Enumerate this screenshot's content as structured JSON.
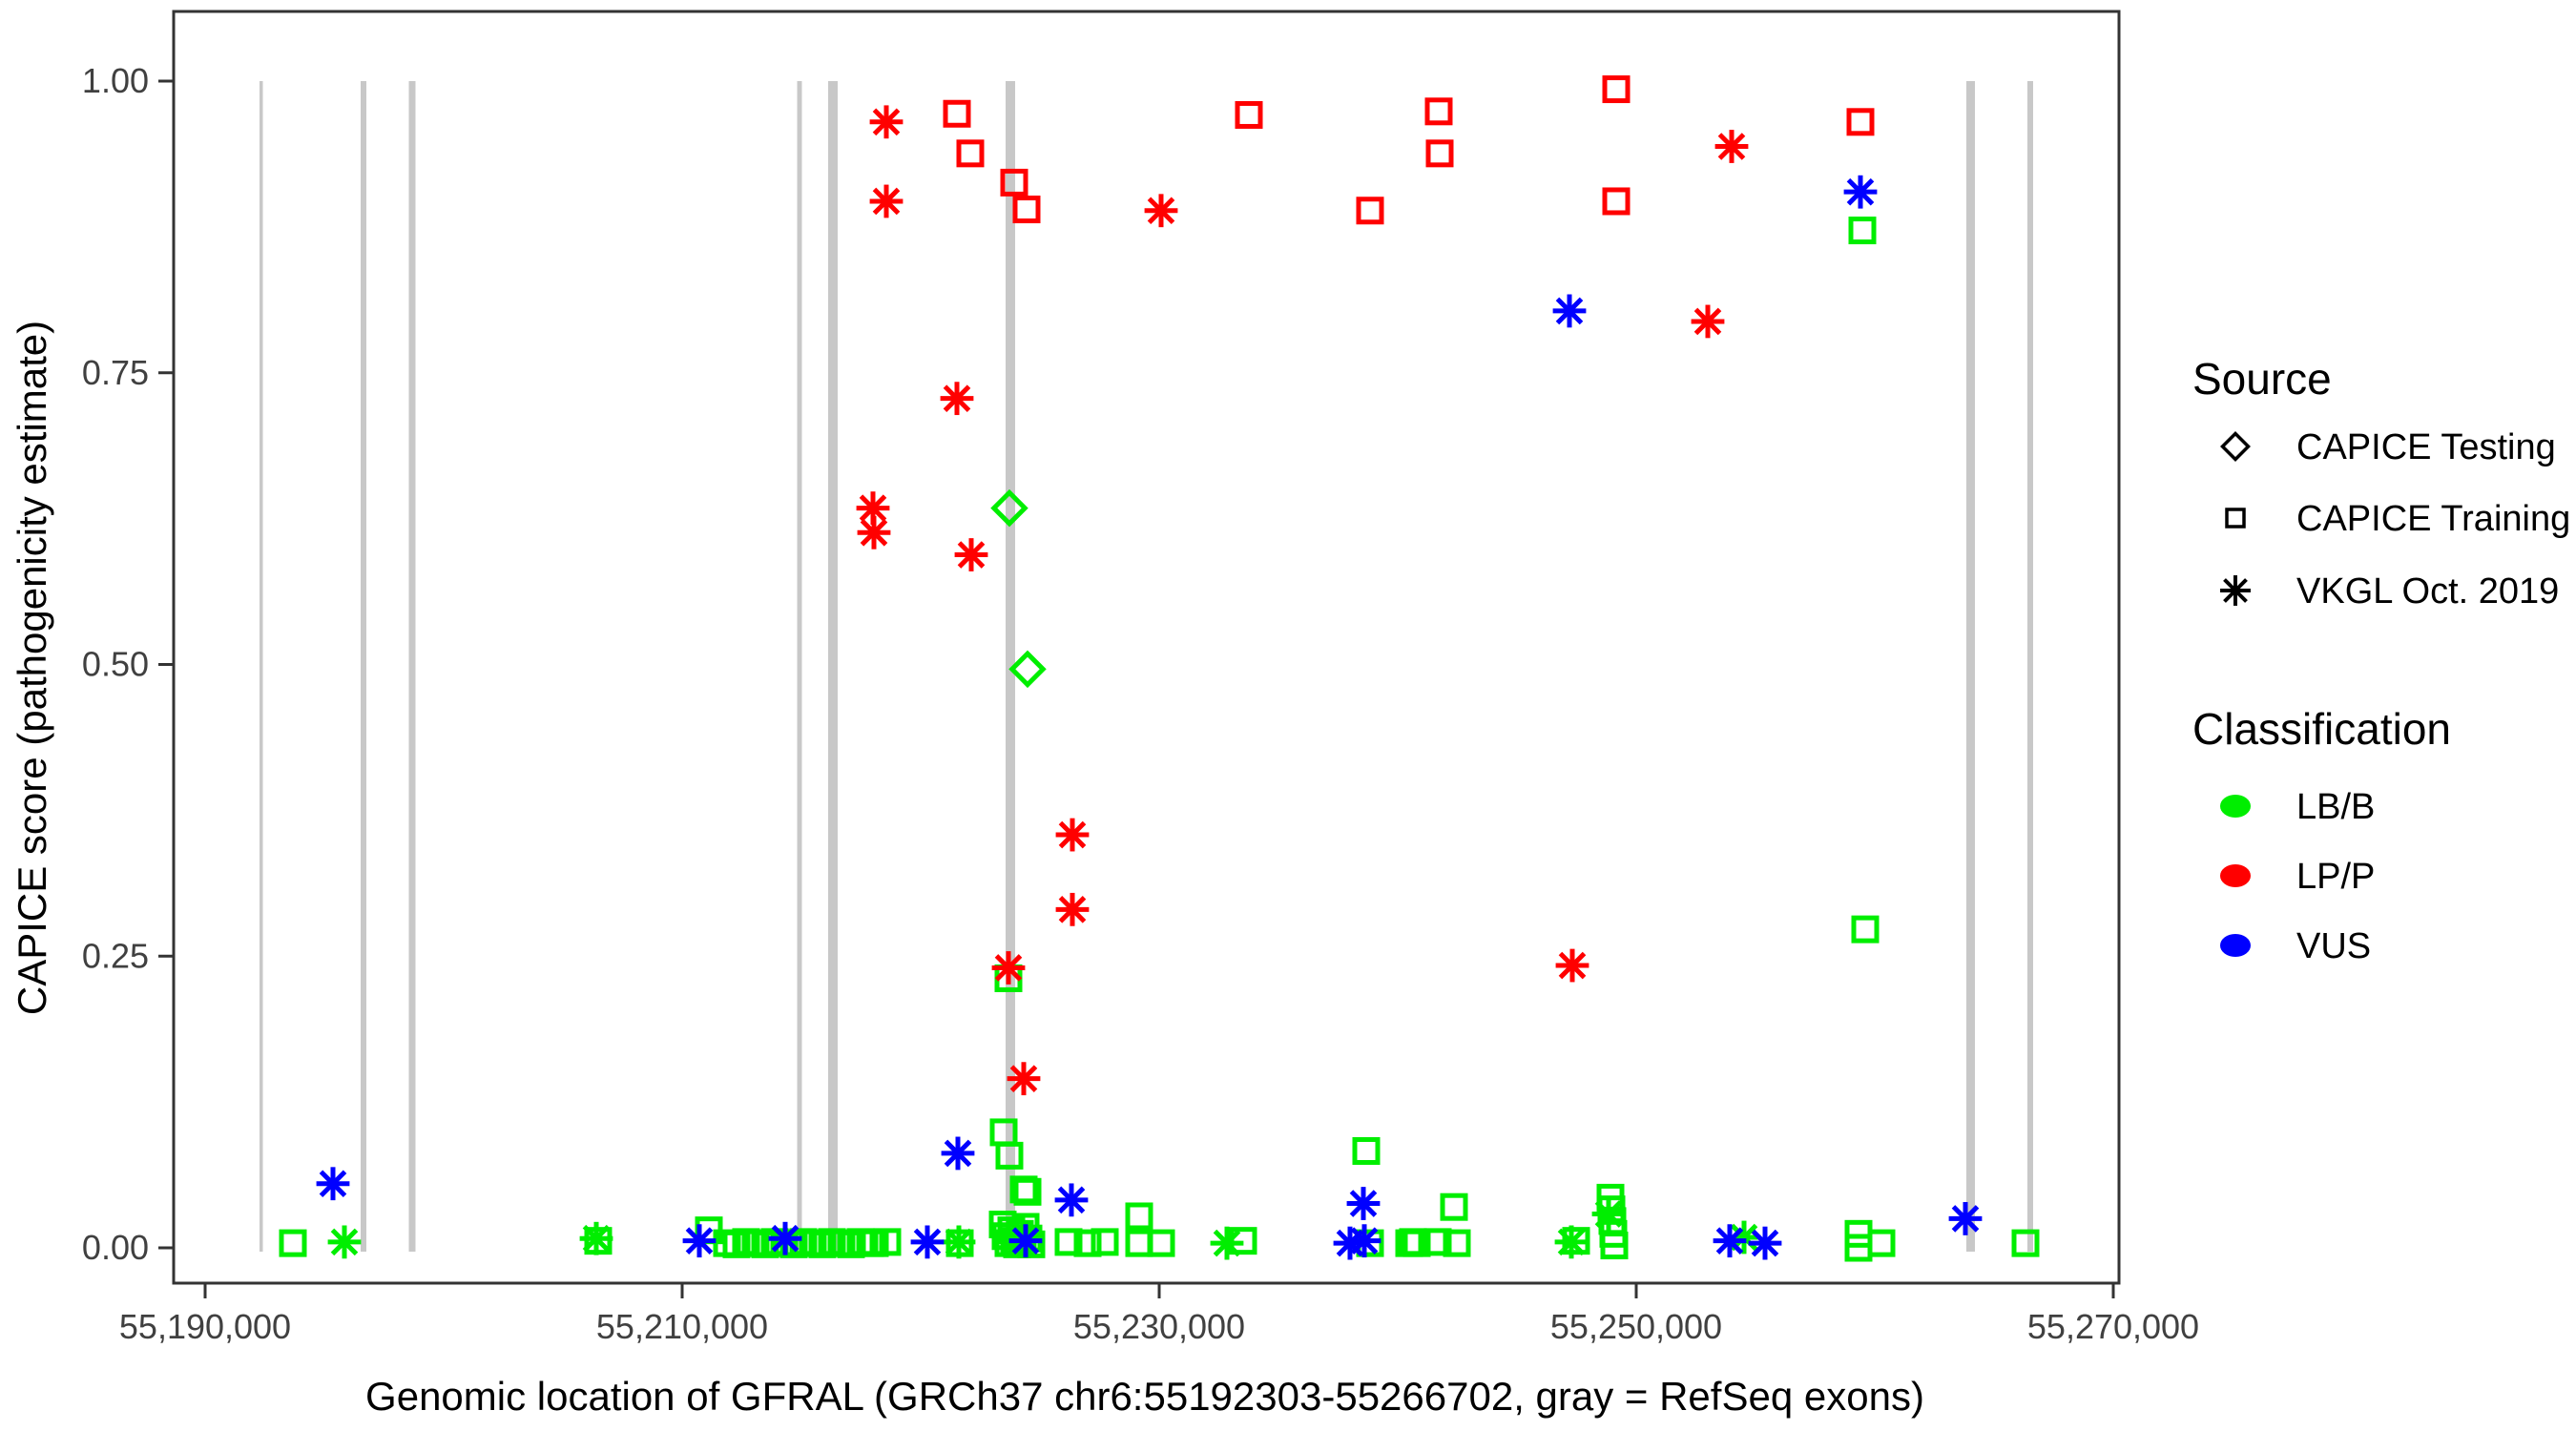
{
  "chart_data": {
    "type": "scatter",
    "title": "",
    "xlabel": "Genomic location of GFRAL (GRCh37 chr6:55192303-55266702, gray = RefSeq exons)",
    "ylabel": "CAPICE score (pathogenicity estimate)",
    "x_ticks": [
      {
        "v": 55190000,
        "label": "55,190,000"
      },
      {
        "v": 55210000,
        "label": "55,210,000"
      },
      {
        "v": 55230000,
        "label": "55,230,000"
      },
      {
        "v": 55250000,
        "label": "55,250,000"
      },
      {
        "v": 55270000,
        "label": "55,270,000"
      }
    ],
    "y_ticks": [
      {
        "v": 0.0,
        "label": "0.00"
      },
      {
        "v": 0.25,
        "label": "0.25"
      },
      {
        "v": 0.5,
        "label": "0.50"
      },
      {
        "v": 0.75,
        "label": "0.75"
      },
      {
        "v": 1.0,
        "label": "1.00"
      }
    ],
    "xlim": [
      55188680,
      55270240
    ],
    "ylim": [
      0,
      1
    ],
    "grid": false,
    "legend_position": "right",
    "colors": {
      "LB/B": "#00ee00",
      "LP/P": "#ff0000",
      "VUS": "#0000ff",
      "exon": "#c8c8c8",
      "axis": "#333333"
    },
    "exons": [
      {
        "start": 55192280,
        "end": 55192400
      },
      {
        "start": 55196520,
        "end": 55196760
      },
      {
        "start": 55198540,
        "end": 55198820
      },
      {
        "start": 55214820,
        "end": 55215020
      },
      {
        "start": 55216120,
        "end": 55216520
      },
      {
        "start": 55223560,
        "end": 55223960
      },
      {
        "start": 55263840,
        "end": 55264200
      },
      {
        "start": 55266400,
        "end": 55266640
      }
    ],
    "points": [
      {
        "bp": 55218560,
        "score": 0.965,
        "source": "vkgl",
        "cls": "LP/P"
      },
      {
        "bp": 55218560,
        "score": 0.897,
        "source": "vkgl",
        "cls": "LP/P"
      },
      {
        "bp": 55218000,
        "score": 0.634,
        "source": "vkgl",
        "cls": "LP/P"
      },
      {
        "bp": 55218040,
        "score": 0.613,
        "source": "vkgl",
        "cls": "LP/P"
      },
      {
        "bp": 55221520,
        "score": 0.728,
        "source": "vkgl",
        "cls": "LP/P"
      },
      {
        "bp": 55222120,
        "score": 0.594,
        "source": "vkgl",
        "cls": "LP/P"
      },
      {
        "bp": 55223680,
        "score": 0.24,
        "source": "vkgl",
        "cls": "LP/P"
      },
      {
        "bp": 55224320,
        "score": 0.145,
        "source": "vkgl",
        "cls": "LP/P"
      },
      {
        "bp": 55226360,
        "score": 0.354,
        "source": "vkgl",
        "cls": "LP/P"
      },
      {
        "bp": 55226360,
        "score": 0.29,
        "source": "vkgl",
        "cls": "LP/P"
      },
      {
        "bp": 55230080,
        "score": 0.889,
        "source": "vkgl",
        "cls": "LP/P"
      },
      {
        "bp": 55247320,
        "score": 0.242,
        "source": "vkgl",
        "cls": "LP/P"
      },
      {
        "bp": 55253000,
        "score": 0.794,
        "source": "vkgl",
        "cls": "LP/P"
      },
      {
        "bp": 55254000,
        "score": 0.944,
        "source": "vkgl",
        "cls": "LP/P"
      },
      {
        "bp": 55221520,
        "score": 0.972,
        "source": "training",
        "cls": "LP/P"
      },
      {
        "bp": 55222080,
        "score": 0.938,
        "source": "training",
        "cls": "LP/P"
      },
      {
        "bp": 55223920,
        "score": 0.913,
        "source": "training",
        "cls": "LP/P"
      },
      {
        "bp": 55224440,
        "score": 0.89,
        "source": "training",
        "cls": "LP/P"
      },
      {
        "bp": 55233760,
        "score": 0.971,
        "source": "training",
        "cls": "LP/P"
      },
      {
        "bp": 55238840,
        "score": 0.889,
        "source": "training",
        "cls": "LP/P"
      },
      {
        "bp": 55241720,
        "score": 0.974,
        "source": "training",
        "cls": "LP/P"
      },
      {
        "bp": 55241760,
        "score": 0.938,
        "source": "training",
        "cls": "LP/P"
      },
      {
        "bp": 55249160,
        "score": 0.993,
        "source": "training",
        "cls": "LP/P"
      },
      {
        "bp": 55249160,
        "score": 0.897,
        "source": "training",
        "cls": "LP/P"
      },
      {
        "bp": 55259400,
        "score": 0.965,
        "source": "training",
        "cls": "LP/P"
      },
      {
        "bp": 55223720,
        "score": 0.634,
        "source": "testing",
        "cls": "LB/B"
      },
      {
        "bp": 55224480,
        "score": 0.496,
        "source": "testing",
        "cls": "LB/B"
      },
      {
        "bp": 55193680,
        "score": 0.004,
        "source": "training",
        "cls": "LB/B"
      },
      {
        "bp": 55206480,
        "score": 0.006,
        "source": "training",
        "cls": "LB/B"
      },
      {
        "bp": 55211120,
        "score": 0.015,
        "source": "training",
        "cls": "LB/B"
      },
      {
        "bp": 55211880,
        "score": 0.004,
        "source": "training",
        "cls": "LB/B"
      },
      {
        "bp": 55212280,
        "score": 0.003,
        "source": "training",
        "cls": "LB/B"
      },
      {
        "bp": 55212680,
        "score": 0.005,
        "source": "training",
        "cls": "LB/B"
      },
      {
        "bp": 55213080,
        "score": 0.004,
        "source": "training",
        "cls": "LB/B"
      },
      {
        "bp": 55213480,
        "score": 0.003,
        "source": "training",
        "cls": "LB/B"
      },
      {
        "bp": 55213880,
        "score": 0.005,
        "source": "training",
        "cls": "LB/B"
      },
      {
        "bp": 55214280,
        "score": 0.004,
        "source": "training",
        "cls": "LB/B"
      },
      {
        "bp": 55214680,
        "score": 0.003,
        "source": "training",
        "cls": "LB/B"
      },
      {
        "bp": 55215080,
        "score": 0.005,
        "source": "training",
        "cls": "LB/B"
      },
      {
        "bp": 55215480,
        "score": 0.004,
        "source": "training",
        "cls": "LB/B"
      },
      {
        "bp": 55215880,
        "score": 0.003,
        "source": "training",
        "cls": "LB/B"
      },
      {
        "bp": 55216280,
        "score": 0.005,
        "source": "training",
        "cls": "LB/B"
      },
      {
        "bp": 55216680,
        "score": 0.004,
        "source": "training",
        "cls": "LB/B"
      },
      {
        "bp": 55217080,
        "score": 0.003,
        "source": "training",
        "cls": "LB/B"
      },
      {
        "bp": 55217480,
        "score": 0.005,
        "source": "training",
        "cls": "LB/B"
      },
      {
        "bp": 55217880,
        "score": 0.004,
        "source": "training",
        "cls": "LB/B"
      },
      {
        "bp": 55218080,
        "score": 0.004,
        "source": "training",
        "cls": "LB/B"
      },
      {
        "bp": 55218600,
        "score": 0.005,
        "source": "training",
        "cls": "LB/B"
      },
      {
        "bp": 55221640,
        "score": 0.004,
        "source": "training",
        "cls": "LB/B"
      },
      {
        "bp": 55223480,
        "score": 0.099,
        "source": "training",
        "cls": "LB/B"
      },
      {
        "bp": 55223720,
        "score": 0.079,
        "source": "training",
        "cls": "LB/B"
      },
      {
        "bp": 55224320,
        "score": 0.05,
        "source": "training",
        "cls": "LB/B"
      },
      {
        "bp": 55224480,
        "score": 0.048,
        "source": "training",
        "cls": "LB/B"
      },
      {
        "bp": 55223680,
        "score": 0.231,
        "source": "training",
        "cls": "LB/B"
      },
      {
        "bp": 55223440,
        "score": 0.02,
        "source": "training",
        "cls": "LB/B"
      },
      {
        "bp": 55223560,
        "score": 0.01,
        "source": "training",
        "cls": "LB/B"
      },
      {
        "bp": 55223680,
        "score": 0.004,
        "source": "training",
        "cls": "LB/B"
      },
      {
        "bp": 55223800,
        "score": 0.015,
        "source": "training",
        "cls": "LB/B"
      },
      {
        "bp": 55223920,
        "score": 0.006,
        "source": "training",
        "cls": "LB/B"
      },
      {
        "bp": 55224040,
        "score": 0.003,
        "source": "training",
        "cls": "LB/B"
      },
      {
        "bp": 55224160,
        "score": 0.012,
        "source": "training",
        "cls": "LB/B"
      },
      {
        "bp": 55224280,
        "score": 0.004,
        "source": "training",
        "cls": "LB/B"
      },
      {
        "bp": 55224400,
        "score": 0.018,
        "source": "training",
        "cls": "LB/B"
      },
      {
        "bp": 55224520,
        "score": 0.008,
        "source": "training",
        "cls": "LB/B"
      },
      {
        "bp": 55224640,
        "score": 0.003,
        "source": "training",
        "cls": "LB/B"
      },
      {
        "bp": 55226200,
        "score": 0.005,
        "source": "training",
        "cls": "LB/B"
      },
      {
        "bp": 55227000,
        "score": 0.004,
        "source": "training",
        "cls": "LB/B"
      },
      {
        "bp": 55227720,
        "score": 0.005,
        "source": "training",
        "cls": "LB/B"
      },
      {
        "bp": 55229160,
        "score": 0.027,
        "source": "training",
        "cls": "LB/B"
      },
      {
        "bp": 55229160,
        "score": 0.004,
        "source": "training",
        "cls": "LB/B"
      },
      {
        "bp": 55230080,
        "score": 0.004,
        "source": "training",
        "cls": "LB/B"
      },
      {
        "bp": 55233520,
        "score": 0.006,
        "source": "training",
        "cls": "LB/B"
      },
      {
        "bp": 55238680,
        "score": 0.083,
        "source": "training",
        "cls": "LB/B"
      },
      {
        "bp": 55238840,
        "score": 0.004,
        "source": "training",
        "cls": "LB/B"
      },
      {
        "bp": 55240480,
        "score": 0.004,
        "source": "training",
        "cls": "LB/B"
      },
      {
        "bp": 55240640,
        "score": 0.005,
        "source": "training",
        "cls": "LB/B"
      },
      {
        "bp": 55240800,
        "score": 0.004,
        "source": "training",
        "cls": "LB/B"
      },
      {
        "bp": 55241680,
        "score": 0.005,
        "source": "training",
        "cls": "LB/B"
      },
      {
        "bp": 55242360,
        "score": 0.035,
        "source": "training",
        "cls": "LB/B"
      },
      {
        "bp": 55242480,
        "score": 0.004,
        "source": "training",
        "cls": "LB/B"
      },
      {
        "bp": 55247480,
        "score": 0.006,
        "source": "training",
        "cls": "LB/B"
      },
      {
        "bp": 55248920,
        "score": 0.043,
        "source": "training",
        "cls": "LB/B"
      },
      {
        "bp": 55248960,
        "score": 0.033,
        "source": "training",
        "cls": "LB/B"
      },
      {
        "bp": 55249000,
        "score": 0.023,
        "source": "training",
        "cls": "LB/B"
      },
      {
        "bp": 55249040,
        "score": 0.012,
        "source": "training",
        "cls": "LB/B"
      },
      {
        "bp": 55249080,
        "score": 0.002,
        "source": "training",
        "cls": "LB/B"
      },
      {
        "bp": 55259320,
        "score": 0.012,
        "source": "training",
        "cls": "LB/B"
      },
      {
        "bp": 55259320,
        "score": 0.0,
        "source": "training",
        "cls": "LB/B"
      },
      {
        "bp": 55260280,
        "score": 0.004,
        "source": "training",
        "cls": "LB/B"
      },
      {
        "bp": 55259480,
        "score": 0.872,
        "source": "training",
        "cls": "LB/B"
      },
      {
        "bp": 55259600,
        "score": 0.273,
        "source": "training",
        "cls": "LB/B"
      },
      {
        "bp": 55266320,
        "score": 0.004,
        "source": "training",
        "cls": "LB/B"
      },
      {
        "bp": 55195840,
        "score": 0.005,
        "source": "vkgl",
        "cls": "LB/B"
      },
      {
        "bp": 55206400,
        "score": 0.008,
        "source": "vkgl",
        "cls": "LB/B"
      },
      {
        "bp": 55221600,
        "score": 0.005,
        "source": "vkgl",
        "cls": "LB/B"
      },
      {
        "bp": 55232840,
        "score": 0.004,
        "source": "vkgl",
        "cls": "LB/B"
      },
      {
        "bp": 55247280,
        "score": 0.005,
        "source": "vkgl",
        "cls": "LB/B"
      },
      {
        "bp": 55248840,
        "score": 0.029,
        "source": "vkgl",
        "cls": "LB/B"
      },
      {
        "bp": 55254520,
        "score": 0.009,
        "source": "vkgl",
        "cls": "LB/B"
      },
      {
        "bp": 55195360,
        "score": 0.055,
        "source": "vkgl",
        "cls": "VUS"
      },
      {
        "bp": 55210720,
        "score": 0.006,
        "source": "vkgl",
        "cls": "VUS"
      },
      {
        "bp": 55214320,
        "score": 0.008,
        "source": "vkgl",
        "cls": "VUS"
      },
      {
        "bp": 55220280,
        "score": 0.005,
        "source": "vkgl",
        "cls": "VUS"
      },
      {
        "bp": 55221560,
        "score": 0.081,
        "source": "vkgl",
        "cls": "VUS"
      },
      {
        "bp": 55224400,
        "score": 0.006,
        "source": "vkgl",
        "cls": "VUS"
      },
      {
        "bp": 55226320,
        "score": 0.041,
        "source": "vkgl",
        "cls": "VUS"
      },
      {
        "bp": 55238000,
        "score": 0.004,
        "source": "vkgl",
        "cls": "VUS"
      },
      {
        "bp": 55238560,
        "score": 0.038,
        "source": "vkgl",
        "cls": "VUS"
      },
      {
        "bp": 55238600,
        "score": 0.006,
        "source": "vkgl",
        "cls": "VUS"
      },
      {
        "bp": 55247200,
        "score": 0.803,
        "source": "vkgl",
        "cls": "VUS"
      },
      {
        "bp": 55253920,
        "score": 0.006,
        "source": "vkgl",
        "cls": "VUS"
      },
      {
        "bp": 55255400,
        "score": 0.004,
        "source": "vkgl",
        "cls": "VUS"
      },
      {
        "bp": 55259400,
        "score": 0.905,
        "source": "vkgl",
        "cls": "VUS"
      },
      {
        "bp": 55263800,
        "score": 0.025,
        "source": "vkgl",
        "cls": "VUS"
      }
    ]
  },
  "legend": {
    "source": {
      "title": "Source",
      "items": [
        {
          "label": "CAPICE Testing",
          "marker": "diamond"
        },
        {
          "label": "CAPICE Training",
          "marker": "square"
        },
        {
          "label": "VKGL Oct. 2019",
          "marker": "asterisk"
        }
      ]
    },
    "classification": {
      "title": "Classification",
      "items": [
        {
          "label": "LB/B",
          "color": "#00ee00"
        },
        {
          "label": "LP/P",
          "color": "#ff0000"
        },
        {
          "label": "VUS",
          "color": "#0000ff"
        }
      ]
    }
  }
}
